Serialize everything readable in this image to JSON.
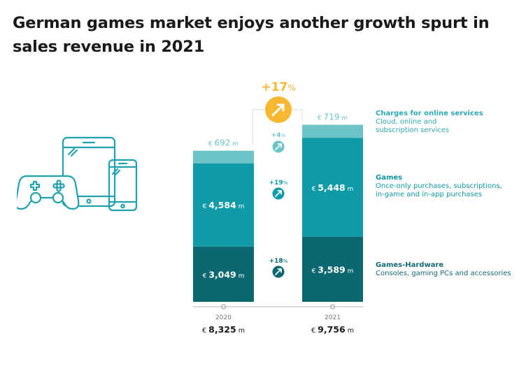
{
  "title": "German games market enjoys another growth spurt in sales revenue in 2021",
  "colors": {
    "online": "#6cc4c9",
    "games": "#0e9aa6",
    "hardware": "#0b6870",
    "accent": "#f7b731",
    "device_stroke": "#1fa2b0"
  },
  "chart_data": {
    "type": "bar",
    "stacked": true,
    "categories": [
      "2020",
      "2021"
    ],
    "unit": "€ m",
    "series": [
      {
        "name": "Games-Hardware",
        "values": [
          3049,
          3589
        ]
      },
      {
        "name": "Games",
        "values": [
          4584,
          5448
        ]
      },
      {
        "name": "Charges for online services",
        "values": [
          692,
          719
        ]
      }
    ],
    "labels": {
      "hardware": [
        "3,049",
        "3,589"
      ],
      "games": [
        "4,584",
        "5,448"
      ],
      "online": [
        "692",
        "719"
      ],
      "totals": [
        "8,325",
        "9,756"
      ]
    },
    "growth": {
      "total": "+17%",
      "online": "+4%",
      "games": "+19%",
      "hardware": "+18%"
    },
    "currency_prefix": "€",
    "unit_suffix": "m"
  },
  "legend": {
    "online": {
      "title": "Charges for online services",
      "desc": [
        "Cloud, online and",
        "subscription services"
      ]
    },
    "games": {
      "title": "Games",
      "desc": [
        "Once-only purchases, subscriptions,",
        "in-game and in-app purchases"
      ]
    },
    "hardware": {
      "title": "Games-Hardware",
      "desc": [
        "Consoles, gaming PCs and accessories"
      ]
    }
  }
}
